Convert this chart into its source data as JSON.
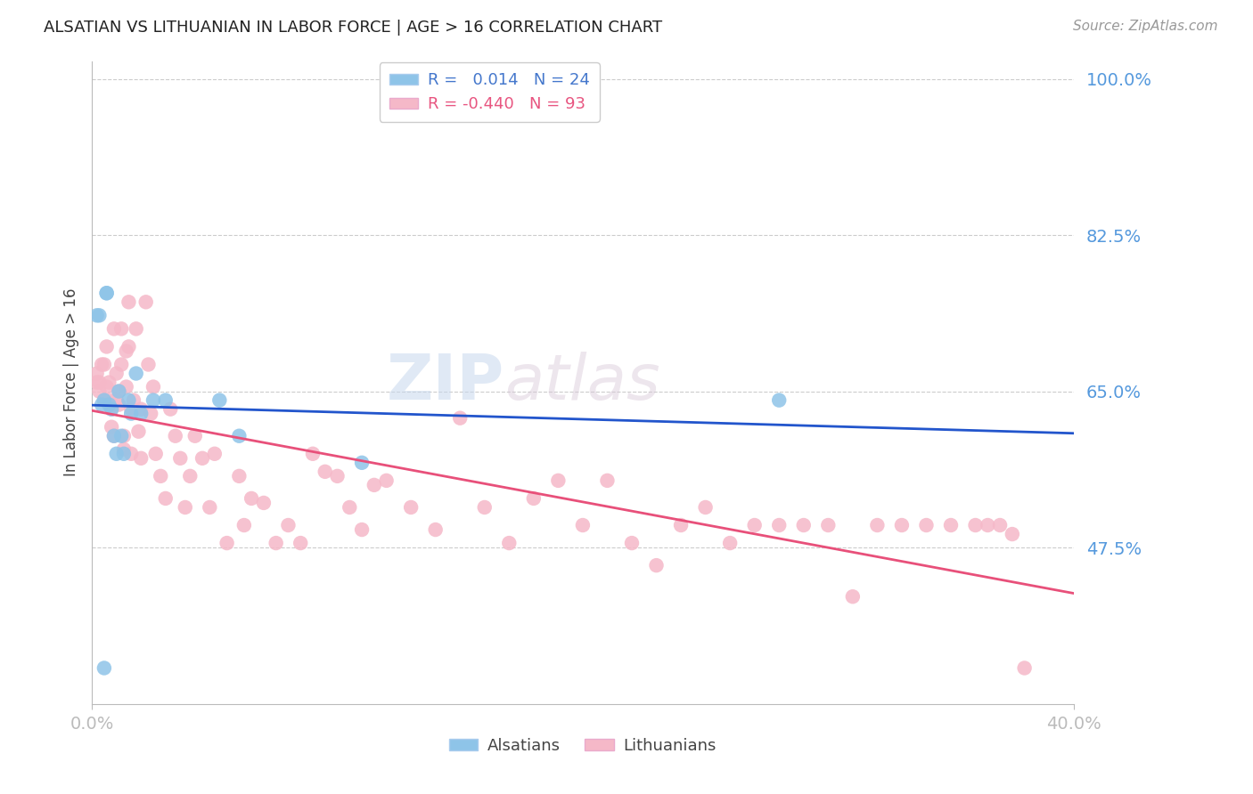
{
  "title": "ALSATIAN VS LITHUANIAN IN LABOR FORCE | AGE > 16 CORRELATION CHART",
  "source": "Source: ZipAtlas.com",
  "ylabel": "In Labor Force | Age > 16",
  "xlim": [
    0.0,
    0.4
  ],
  "ylim": [
    0.3,
    1.02
  ],
  "ytick_positions": [
    0.475,
    0.65,
    0.825,
    1.0
  ],
  "ytick_labels": [
    "47.5%",
    "65.0%",
    "82.5%",
    "100.0%"
  ],
  "xtick_positions": [
    0.0,
    0.4
  ],
  "xtick_labels": [
    "0.0%",
    "40.0%"
  ],
  "background_color": "#ffffff",
  "grid_color": "#cccccc",
  "alsatian_color": "#8ec4e8",
  "lithuanian_color": "#f5b8c8",
  "line_alsatian_color": "#2255cc",
  "line_lithuanian_color": "#e8507a",
  "alsatian_R": 0.014,
  "alsatian_N": 24,
  "lithuanian_R": -0.44,
  "lithuanian_N": 93,
  "alsatian_x": [
    0.002,
    0.003,
    0.004,
    0.005,
    0.006,
    0.006,
    0.007,
    0.008,
    0.009,
    0.01,
    0.011,
    0.012,
    0.013,
    0.015,
    0.016,
    0.018,
    0.02,
    0.025,
    0.03,
    0.052,
    0.06,
    0.11,
    0.28,
    0.005
  ],
  "alsatian_y": [
    0.735,
    0.735,
    0.635,
    0.64,
    0.76,
    0.76,
    0.635,
    0.63,
    0.6,
    0.58,
    0.65,
    0.6,
    0.58,
    0.64,
    0.625,
    0.67,
    0.625,
    0.64,
    0.64,
    0.64,
    0.6,
    0.57,
    0.64,
    0.34
  ],
  "lithuanian_x": [
    0.002,
    0.002,
    0.003,
    0.003,
    0.004,
    0.005,
    0.005,
    0.006,
    0.006,
    0.007,
    0.007,
    0.008,
    0.008,
    0.009,
    0.009,
    0.01,
    0.01,
    0.011,
    0.011,
    0.012,
    0.012,
    0.013,
    0.013,
    0.014,
    0.014,
    0.015,
    0.015,
    0.016,
    0.016,
    0.017,
    0.018,
    0.019,
    0.02,
    0.02,
    0.022,
    0.023,
    0.024,
    0.025,
    0.026,
    0.028,
    0.03,
    0.032,
    0.034,
    0.036,
    0.038,
    0.04,
    0.042,
    0.045,
    0.048,
    0.05,
    0.055,
    0.06,
    0.062,
    0.065,
    0.07,
    0.075,
    0.08,
    0.085,
    0.09,
    0.095,
    0.1,
    0.105,
    0.11,
    0.115,
    0.12,
    0.13,
    0.14,
    0.15,
    0.16,
    0.17,
    0.18,
    0.19,
    0.2,
    0.21,
    0.22,
    0.23,
    0.24,
    0.25,
    0.26,
    0.27,
    0.28,
    0.29,
    0.3,
    0.31,
    0.32,
    0.33,
    0.34,
    0.35,
    0.36,
    0.365,
    0.37,
    0.375,
    0.38
  ],
  "lithuanian_y": [
    0.67,
    0.66,
    0.66,
    0.65,
    0.68,
    0.64,
    0.68,
    0.7,
    0.655,
    0.66,
    0.64,
    0.63,
    0.61,
    0.72,
    0.6,
    0.64,
    0.67,
    0.65,
    0.635,
    0.72,
    0.68,
    0.6,
    0.585,
    0.695,
    0.655,
    0.75,
    0.7,
    0.63,
    0.58,
    0.64,
    0.72,
    0.605,
    0.63,
    0.575,
    0.75,
    0.68,
    0.625,
    0.655,
    0.58,
    0.555,
    0.53,
    0.63,
    0.6,
    0.575,
    0.52,
    0.555,
    0.6,
    0.575,
    0.52,
    0.58,
    0.48,
    0.555,
    0.5,
    0.53,
    0.525,
    0.48,
    0.5,
    0.48,
    0.58,
    0.56,
    0.555,
    0.52,
    0.495,
    0.545,
    0.55,
    0.52,
    0.495,
    0.62,
    0.52,
    0.48,
    0.53,
    0.55,
    0.5,
    0.55,
    0.48,
    0.455,
    0.5,
    0.52,
    0.48,
    0.5,
    0.5,
    0.5,
    0.5,
    0.42,
    0.5,
    0.5,
    0.5,
    0.5,
    0.5,
    0.5,
    0.5,
    0.49,
    0.34
  ]
}
